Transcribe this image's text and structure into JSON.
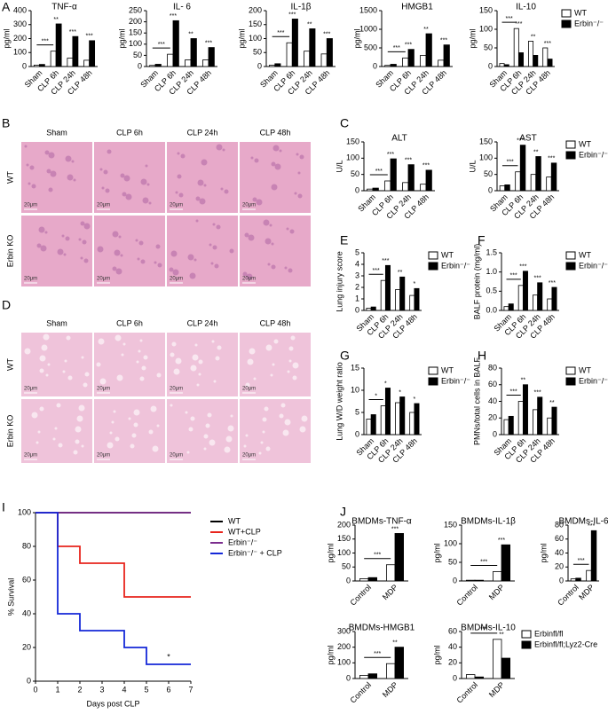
{
  "panel_labels": [
    "A",
    "B",
    "C",
    "D",
    "E",
    "F",
    "G",
    "H",
    "I",
    "J"
  ],
  "histology": [
    {
      "columns": [
        "Sham",
        "CLP 6h",
        "CLP 24h",
        "CLP 48h"
      ],
      "rows": [
        "WT",
        "Erbin KO"
      ],
      "scale_bar": "20μm"
    },
    {
      "columns": [
        "Sham",
        "CLP 6h",
        "CLP 24h",
        "CLP 48h"
      ],
      "rows": [
        "WT",
        "Erbin KO"
      ],
      "scale_bar": "20μm"
    }
  ],
  "chart_data": [
    {
      "type": "bar",
      "title": "TNF-α",
      "ylabel": "pg/ml",
      "categories": [
        "Sham",
        "CLP 6h",
        "CLP 24h",
        "CLP 48h"
      ],
      "series": [
        {
          "color": "#ffffff",
          "values": [
            10,
            110,
            60,
            45
          ]
        },
        {
          "color": "#000000",
          "values": [
            15,
            305,
            215,
            185
          ]
        }
      ],
      "ylim": [
        0,
        400
      ],
      "yticks": [
        0,
        100,
        200,
        300,
        400
      ],
      "bracket": "***",
      "annotations": [
        null,
        "**",
        "***",
        "***"
      ]
    },
    {
      "type": "bar",
      "title": "IL- 6",
      "ylabel": "pg/ml",
      "categories": [
        "Sham",
        "CLP 6h",
        "CLP 24h",
        "CLP 48h"
      ],
      "series": [
        {
          "color": "#ffffff",
          "values": [
            5,
            55,
            30,
            30
          ]
        },
        {
          "color": "#000000",
          "values": [
            10,
            205,
            125,
            85
          ]
        }
      ],
      "ylim": [
        0,
        250
      ],
      "yticks": [
        0,
        50,
        100,
        150,
        200,
        250
      ],
      "bracket": "***",
      "annotations": [
        null,
        "***",
        "**",
        "***"
      ]
    },
    {
      "type": "bar",
      "title": "IL-1β",
      "ylabel": "pg/ml",
      "categories": [
        "Sham",
        "CLP 6h",
        "CLP 24h",
        "CLP 48h"
      ],
      "series": [
        {
          "color": "#ffffff",
          "values": [
            5,
            85,
            55,
            45
          ]
        },
        {
          "color": "#000000",
          "values": [
            10,
            170,
            135,
            100
          ]
        }
      ],
      "ylim": [
        0,
        200
      ],
      "yticks": [
        0,
        50,
        100,
        150,
        200
      ],
      "bracket": "***",
      "annotations": [
        null,
        "***",
        "**",
        "***"
      ]
    },
    {
      "type": "bar",
      "title": "HMGB1",
      "ylabel": "pg/ml",
      "categories": [
        "Sham",
        "CLP 6h",
        "CLP 24h",
        "CLP 48h"
      ],
      "series": [
        {
          "color": "#ffffff",
          "values": [
            30,
            230,
            300,
            170
          ]
        },
        {
          "color": "#000000",
          "values": [
            60,
            460,
            880,
            580
          ]
        }
      ],
      "ylim": [
        0,
        1500
      ],
      "yticks": [
        0,
        500,
        1000,
        1500
      ],
      "bracket": "***",
      "annotations": [
        null,
        "***",
        "**",
        "***"
      ]
    },
    {
      "type": "bar",
      "title": "IL-10",
      "ylabel": "pg/ml",
      "categories": [
        "Sham",
        "CLP 6h",
        "CLP 24h",
        "CLP 48h"
      ],
      "series": [
        {
          "name": "WT",
          "color": "#ffffff",
          "values": [
            8,
            102,
            68,
            50
          ]
        },
        {
          "name": "Erbin⁻/⁻",
          "color": "#000000",
          "values": [
            5,
            37,
            30,
            20
          ]
        }
      ],
      "ylim": [
        0,
        150
      ],
      "yticks": [
        0,
        50,
        100,
        150
      ],
      "bracket": "***",
      "annotations": [
        null,
        "***",
        "**",
        "***"
      ]
    },
    {
      "type": "bar",
      "title": "ALT",
      "ylabel": "U/L",
      "categories": [
        "Sham",
        "CLP 6h",
        "CLP 24h",
        "CLP 48h"
      ],
      "series": [
        {
          "color": "#ffffff",
          "values": [
            5,
            30,
            25,
            20
          ]
        },
        {
          "color": "#000000",
          "values": [
            8,
            98,
            80,
            63
          ]
        }
      ],
      "ylim": [
        0,
        150
      ],
      "yticks": [
        0,
        50,
        100,
        150
      ],
      "bracket": "***",
      "annotations": [
        null,
        "***",
        "***",
        "***"
      ]
    },
    {
      "type": "bar",
      "title": "AST",
      "ylabel": "U/L",
      "categories": [
        "Sham",
        "CLP 6h",
        "CLP 24h",
        "CLP 48h"
      ],
      "series": [
        {
          "name": "WT",
          "color": "#ffffff",
          "values": [
            15,
            58,
            50,
            42
          ]
        },
        {
          "name": "Erbin⁻/⁻",
          "color": "#000000",
          "values": [
            18,
            140,
            105,
            85
          ]
        }
      ],
      "ylim": [
        0,
        150
      ],
      "yticks": [
        0,
        50,
        100,
        150
      ],
      "bracket": "***",
      "annotations": [
        null,
        "***",
        "**",
        "***"
      ]
    },
    {
      "type": "bar",
      "ylabel": "Lung injury score",
      "categories": [
        "Sham",
        "CLP 6h",
        "CLP 24h",
        "CLP 48h"
      ],
      "series": [
        {
          "name": "WT",
          "color": "#ffffff",
          "values": [
            0.2,
            2.6,
            1.8,
            1.3
          ]
        },
        {
          "name": "Erbin⁻/⁻",
          "color": "#000000",
          "values": [
            0.3,
            3.9,
            2.9,
            1.9
          ]
        }
      ],
      "ylim": [
        0,
        5
      ],
      "yticks": [
        0,
        1,
        2,
        3,
        4,
        5
      ],
      "bracket": "***",
      "annotations": [
        null,
        "***",
        "**",
        "*"
      ]
    },
    {
      "type": "bar",
      "ylabel": "BALF protein (mg/ml)",
      "categories": [
        "Sham",
        "CLP 6h",
        "CLP 24h",
        "CLP 48h"
      ],
      "series": [
        {
          "name": "WT",
          "color": "#ffffff",
          "values": [
            0.1,
            0.65,
            0.4,
            0.3
          ]
        },
        {
          "name": "Erbin⁻/⁻",
          "color": "#000000",
          "values": [
            0.17,
            1.02,
            0.72,
            0.6
          ]
        }
      ],
      "ylim": [
        0,
        1.5
      ],
      "yticks": [
        {
          "value": 0,
          "label": "0.0"
        },
        0.5,
        {
          "value": 1,
          "label": "1.0"
        },
        1.5
      ],
      "bracket": "***",
      "annotations": [
        null,
        "***",
        "***",
        "***"
      ]
    },
    {
      "type": "bar",
      "ylabel": "Lung W/D weight ratio",
      "categories": [
        "Sham",
        "CLP 6h",
        "CLP 24h",
        "CLP 48h"
      ],
      "series": [
        {
          "name": "WT",
          "color": "#ffffff",
          "values": [
            3.5,
            6.5,
            7.2,
            5
          ]
        },
        {
          "name": "Erbin⁻/⁻",
          "color": "#000000",
          "values": [
            4.5,
            10.5,
            8.5,
            7
          ]
        }
      ],
      "ylim": [
        0,
        15
      ],
      "yticks": [
        0,
        5,
        10,
        15
      ],
      "bracket": "*",
      "annotations": [
        null,
        "*",
        "*",
        "*"
      ]
    },
    {
      "type": "bar",
      "ylabel": "PMNs/total cells in BALF",
      "categories": [
        "Sham",
        "CLP 6h",
        "CLP 24h",
        "CLP 48h"
      ],
      "series": [
        {
          "name": "WT",
          "color": "#ffffff",
          "values": [
            18,
            40,
            30,
            20
          ]
        },
        {
          "name": "Erbin⁻/⁻",
          "color": "#000000",
          "values": [
            22,
            60,
            45,
            33
          ]
        }
      ],
      "ylim": [
        0,
        80
      ],
      "yticks": [
        0,
        20,
        40,
        60,
        80
      ],
      "bracket": "***",
      "annotations": [
        null,
        "**",
        "***",
        "**"
      ]
    },
    {
      "type": "line",
      "ylabel": "% Survival",
      "xlabel": "Days post CLP",
      "x": [
        0,
        1,
        1,
        2,
        2,
        4,
        4,
        5,
        5,
        7
      ],
      "series": [
        {
          "name": "WT",
          "color": "#000000",
          "values": [
            100,
            100,
            100,
            100,
            100,
            100,
            100,
            100,
            100,
            100
          ]
        },
        {
          "name": "WT+CLP",
          "color": "#e8241c",
          "values": [
            100,
            100,
            80,
            80,
            70,
            70,
            50,
            50,
            50,
            50
          ]
        },
        {
          "name": "Erbin⁻/⁻",
          "color": "#7b2d8e",
          "values": [
            100,
            100,
            100,
            100,
            100,
            100,
            100,
            100,
            100,
            100
          ]
        },
        {
          "name": "Erbin⁻/⁻ + CLP",
          "color": "#1428d8",
          "values": [
            100,
            100,
            40,
            40,
            30,
            30,
            20,
            20,
            10,
            10
          ]
        }
      ],
      "xlim": [
        0,
        7
      ],
      "xticks": [
        0,
        1,
        2,
        3,
        4,
        5,
        6,
        7
      ],
      "ylim": [
        0,
        100
      ],
      "yticks": [
        0,
        20,
        40,
        60,
        80,
        100
      ],
      "annotation": "*"
    },
    {
      "type": "bar",
      "title": "BMDMs-TNF-α",
      "ylabel": "pg/ml",
      "categories": [
        "Control",
        "MDP"
      ],
      "series": [
        {
          "color": "#ffffff",
          "values": [
            8,
            58
          ]
        },
        {
          "color": "#000000",
          "values": [
            12,
            170
          ]
        }
      ],
      "ylim": [
        0,
        200
      ],
      "yticks": [
        0,
        50,
        100,
        150,
        200
      ],
      "bracket": "***",
      "annotations": [
        null,
        "***"
      ]
    },
    {
      "type": "bar",
      "title": "BMDMs-IL-1β",
      "ylabel": "pg/ml",
      "categories": [
        "Control",
        "MDP"
      ],
      "series": [
        {
          "color": "#ffffff",
          "values": [
            2,
            25
          ]
        },
        {
          "color": "#000000",
          "values": [
            2,
            97
          ]
        }
      ],
      "ylim": [
        0,
        150
      ],
      "yticks": [
        0,
        50,
        100,
        150
      ],
      "bracket": "***",
      "annotations": [
        null,
        "***"
      ]
    },
    {
      "type": "bar",
      "title": "BMDMs-IL-6",
      "ylabel": "pg/ml",
      "categories": [
        "Control",
        "MDP"
      ],
      "series": [
        {
          "color": "#ffffff",
          "values": [
            3,
            15
          ]
        },
        {
          "color": "#000000",
          "values": [
            4,
            72
          ]
        }
      ],
      "ylim": [
        0,
        80
      ],
      "yticks": [
        0,
        20,
        40,
        60,
        80
      ],
      "bracket": "***",
      "annotations": [
        null,
        "***"
      ]
    },
    {
      "type": "bar",
      "title": "BMDMs-HMGB1",
      "ylabel": "pg/ml",
      "categories": [
        "Control",
        "MDP"
      ],
      "series": [
        {
          "color": "#ffffff",
          "values": [
            20,
            95
          ]
        },
        {
          "color": "#000000",
          "values": [
            30,
            200
          ]
        }
      ],
      "ylim": [
        0,
        300
      ],
      "yticks": [
        0,
        100,
        200,
        300
      ],
      "bracket": "***",
      "annotations": [
        null,
        "**"
      ]
    },
    {
      "type": "bar",
      "title": "BMDMs-IL-10",
      "ylabel": "pg/ml",
      "categories": [
        "Control",
        "MDP"
      ],
      "series": [
        {
          "name": "Erbinfl/fl",
          "color": "#ffffff",
          "values": [
            5,
            50
          ]
        },
        {
          "name": "Erbinfl/fl;Lyz2-Cre",
          "color": "#000000",
          "values": [
            2,
            26
          ]
        }
      ],
      "ylim": [
        0,
        60
      ],
      "yticks": [
        0,
        20,
        40,
        60
      ],
      "bracket": "***",
      "annotations": [
        null,
        "**"
      ]
    }
  ]
}
